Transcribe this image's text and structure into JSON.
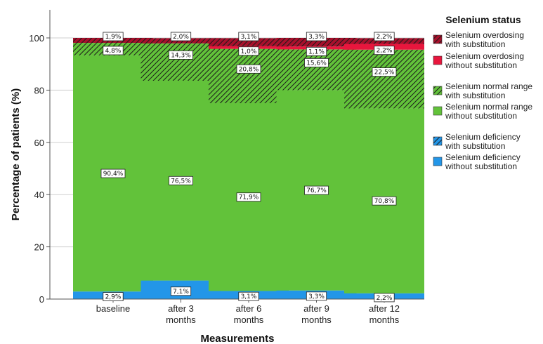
{
  "chart_data": {
    "type": "bar",
    "stacked": true,
    "title": "",
    "xlabel": "Measurements",
    "ylabel": "Percentage of patients (%)",
    "ylim": [
      0,
      110
    ],
    "yticks": [
      0,
      20,
      40,
      60,
      80,
      100
    ],
    "grid": "horizontal",
    "categories": [
      [
        "baseline"
      ],
      [
        "after 3",
        "months"
      ],
      [
        "after 6",
        "months"
      ],
      [
        "after 9",
        "months"
      ],
      [
        "after 12",
        "months"
      ]
    ],
    "legend": {
      "title": "Selenium status",
      "position": "right"
    },
    "series": [
      {
        "name": [
          "Selenium deficiency",
          "without substitution"
        ],
        "color": "#2396E8",
        "hatched": false,
        "values": [
          2.9,
          7.1,
          3.1,
          3.3,
          2.2
        ],
        "labels": [
          "2,9%",
          "7,1%",
          "3,1%",
          "3,3%",
          "2,2%"
        ]
      },
      {
        "name": [
          "Selenium deficiency",
          "with substitution"
        ],
        "color": "#2396E8",
        "hatched": true,
        "values": [
          0,
          0,
          0,
          0,
          0
        ],
        "labels": [
          "",
          "",
          "",
          "",
          ""
        ]
      },
      {
        "name": [
          "Selenium normal range",
          "without substitution"
        ],
        "color": "#62C23A",
        "hatched": false,
        "values": [
          90.4,
          76.5,
          71.9,
          76.7,
          70.8
        ],
        "labels": [
          "90,4%",
          "76,5%",
          "71,9%",
          "76,7%",
          "70,8%"
        ]
      },
      {
        "name": [
          "Selenium normal range",
          "with substitution"
        ],
        "color": "#62C23A",
        "hatched": true,
        "values": [
          4.8,
          14.3,
          20.8,
          15.6,
          22.5
        ],
        "labels": [
          "4,8%",
          "14,3%",
          "20,8%",
          "15,6%",
          "22,5%"
        ]
      },
      {
        "name": [
          "Selenium overdosing",
          "without substitution"
        ],
        "color": "#E8163D",
        "hatched": false,
        "values": [
          0,
          0,
          1.0,
          1.1,
          2.2
        ],
        "labels": [
          "",
          "",
          "1,0%",
          "1,1%",
          "2,2%"
        ]
      },
      {
        "name": [
          "Selenium overdosing",
          "with substitution"
        ],
        "color": "#A8102C",
        "hatched": true,
        "values": [
          1.9,
          2.0,
          3.1,
          3.3,
          2.2
        ],
        "labels": [
          "1,9%",
          "2,0%",
          "3,1%",
          "3,3%",
          "2,2%"
        ]
      }
    ]
  }
}
